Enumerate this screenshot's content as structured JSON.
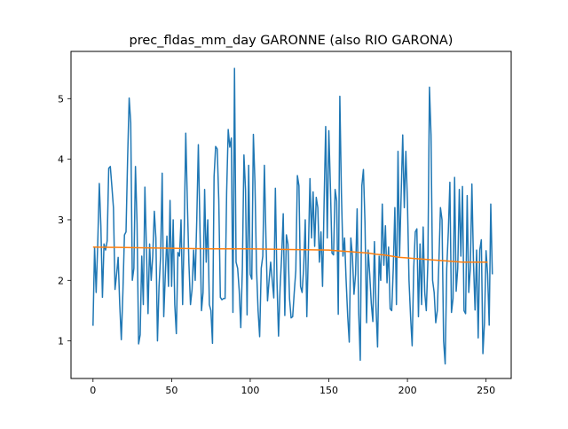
{
  "chart_data": {
    "type": "line",
    "title": "prec_fldas_mm_day GARONNE (also RIO GARONA)",
    "xlabel": "",
    "ylabel": "",
    "xlim": [
      -14,
      266
    ],
    "ylim": [
      0.38,
      5.78
    ],
    "xticks": [
      0,
      50,
      100,
      150,
      200,
      250
    ],
    "yticks": [
      1,
      2,
      3,
      4,
      5
    ],
    "grid": false,
    "legend": "none",
    "series": [
      {
        "color": "#1f77b4",
        "x_start": 0,
        "x_step": 1,
        "values": [
          1.25,
          2.55,
          1.8,
          2.6,
          3.6,
          2.9,
          1.72,
          2.6,
          2.5,
          2.65,
          3.85,
          3.88,
          3.55,
          3.2,
          1.85,
          2.1,
          2.38,
          1.6,
          1.02,
          1.8,
          2.75,
          2.8,
          4.0,
          5.01,
          4.6,
          2.0,
          2.2,
          3.88,
          2.95,
          0.95,
          1.1,
          2.4,
          1.6,
          3.54,
          2.5,
          1.45,
          2.6,
          2.0,
          2.4,
          3.14,
          2.7,
          1.0,
          1.9,
          2.4,
          3.77,
          1.4,
          2.1,
          2.73,
          1.9,
          3.32,
          1.9,
          3.0,
          1.6,
          1.12,
          2.46,
          2.4,
          3.0,
          1.6,
          2.8,
          4.43,
          3.3,
          2.28,
          1.6,
          1.85,
          2.5,
          2.0,
          3.0,
          4.24,
          2.9,
          1.5,
          1.8,
          3.5,
          2.3,
          3.0,
          1.6,
          1.5,
          0.96,
          3.71,
          4.21,
          4.17,
          3.33,
          1.72,
          1.68,
          1.7,
          1.7,
          3.45,
          4.49,
          4.2,
          4.35,
          1.47,
          5.5,
          2.3,
          2.2,
          1.83,
          1.22,
          2.2,
          4.07,
          3.5,
          1.43,
          3.9,
          2.1,
          2.02,
          4.41,
          3.62,
          2.2,
          1.5,
          1.07,
          2.2,
          2.4,
          3.9,
          2.7,
          1.66,
          2.0,
          2.3,
          2.0,
          1.71,
          3.52,
          2.0,
          1.08,
          1.88,
          2.4,
          3.1,
          1.42,
          2.75,
          2.6,
          1.7,
          1.38,
          1.4,
          1.8,
          2.16,
          3.73,
          3.56,
          1.9,
          1.8,
          2.2,
          3.0,
          1.4,
          2.5,
          3.68,
          2.7,
          3.46,
          2.56,
          3.37,
          3.2,
          2.3,
          2.8,
          1.9,
          3.3,
          4.54,
          2.7,
          4.47,
          3.55,
          2.45,
          2.42,
          3.5,
          3.31,
          1.44,
          5.04,
          3.44,
          2.4,
          2.7,
          2.0,
          1.41,
          0.98,
          2.7,
          2.4,
          1.77,
          2.1,
          3.18,
          1.47,
          0.68,
          3.56,
          3.83,
          2.95,
          1.3,
          2.5,
          2.1,
          1.62,
          1.32,
          2.64,
          1.56,
          0.9,
          2.4,
          2.0,
          3.26,
          2.25,
          2.9,
          1.96,
          2.55,
          1.53,
          1.5,
          2.2,
          3.2,
          1.6,
          4.13,
          2.4,
          3.41,
          4.4,
          3.2,
          4.13,
          3.3,
          2.0,
          1.4,
          0.92,
          2.2,
          2.8,
          2.85,
          1.4,
          2.6,
          1.6,
          2.88,
          1.8,
          1.5,
          2.3,
          5.19,
          4.4,
          2.0,
          1.8,
          1.3,
          1.5,
          2.3,
          3.2,
          3.0,
          1.0,
          0.62,
          2.2,
          2.8,
          3.62,
          1.47,
          1.7,
          3.7,
          1.82,
          2.2,
          3.5,
          2.4,
          3.55,
          1.5,
          1.45,
          3.4,
          1.8,
          2.2,
          3.59,
          2.3,
          1.51,
          2.5,
          1.05,
          2.5,
          2.67,
          0.79,
          1.3,
          2.49,
          2.1,
          1.26,
          3.26,
          2.1
        ]
      },
      {
        "color": "#ff7f0e",
        "x": [
          0,
          25,
          50,
          75,
          100,
          125,
          150,
          155,
          160,
          165,
          170,
          175,
          180,
          185,
          190,
          195,
          200,
          205,
          210,
          215,
          220,
          225,
          230,
          235,
          240,
          245,
          251
        ],
        "values": [
          2.55,
          2.54,
          2.53,
          2.52,
          2.52,
          2.51,
          2.5,
          2.49,
          2.48,
          2.47,
          2.46,
          2.45,
          2.43,
          2.42,
          2.4,
          2.38,
          2.37,
          2.36,
          2.35,
          2.34,
          2.33,
          2.32,
          2.31,
          2.3,
          2.3,
          2.3,
          2.3
        ]
      }
    ]
  }
}
